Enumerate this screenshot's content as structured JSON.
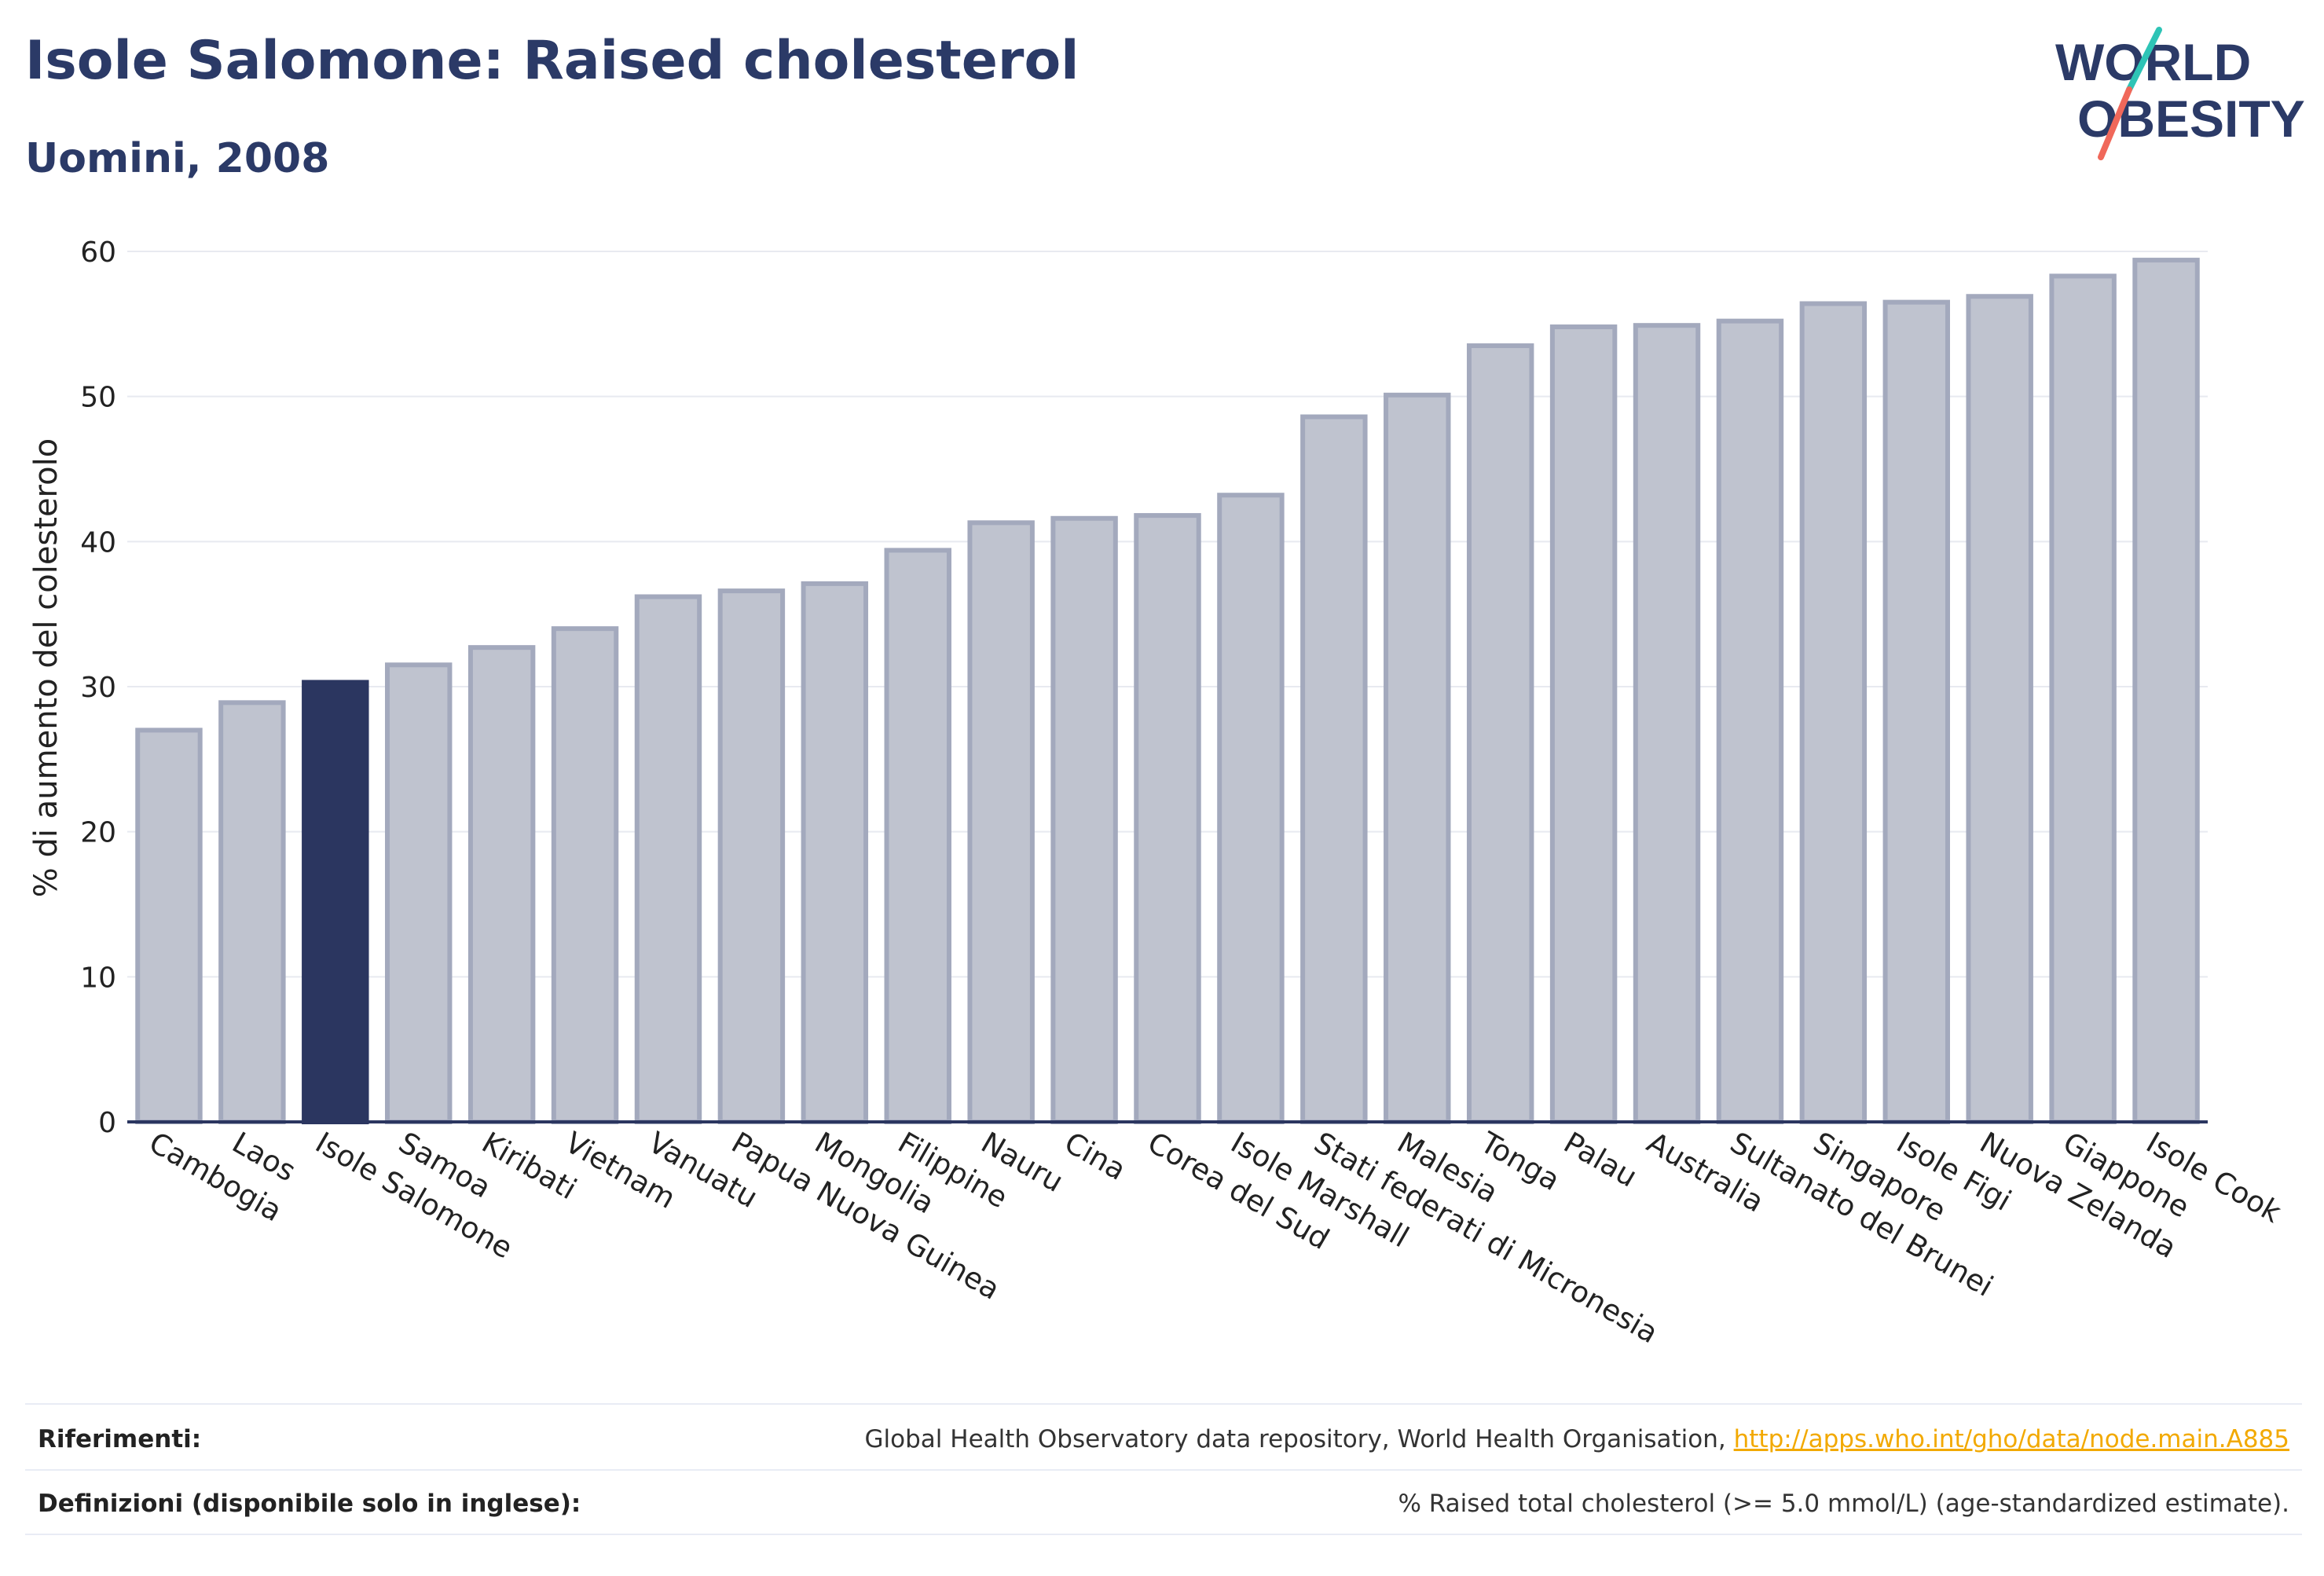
{
  "header": {
    "title": "Isole Salomone: Raised cholesterol",
    "subtitle": "Uomini, 2008"
  },
  "logo": {
    "line1": "WORLD",
    "line2": "OBESITY",
    "colors": {
      "text": "#2b3a67",
      "slash_top": "#2ec4b6",
      "slash_bottom": "#f0685a"
    }
  },
  "chart_data": {
    "type": "bar",
    "ylabel": "% di aumento del colesterolo",
    "ylim": [
      0,
      60
    ],
    "yticks": [
      0,
      10,
      20,
      30,
      40,
      50,
      60
    ],
    "grid": true,
    "highlight": "Isole Salomone",
    "colors": {
      "bar": "#bfc3cf",
      "bar_edge": "#a3a9bd",
      "highlight": "#2b3660",
      "axis": "#2b3660",
      "grid": "#e8eaf0"
    },
    "categories": [
      "Cambogia",
      "Laos",
      "Isole Salomone",
      "Samoa",
      "Kiribati",
      "Vietnam",
      "Vanuatu",
      "Papua Nuova Guinea",
      "Mongolia",
      "Filippine",
      "Nauru",
      "Cina",
      "Corea del Sud",
      "Isole Marshall",
      "Stati federati di Micronesia",
      "Malesia",
      "Tonga",
      "Palau",
      "Australia",
      "Sultanato del Brunei",
      "Singapore",
      "Isole Figi",
      "Nuova Zelanda",
      "Giappone",
      "Isole Cook"
    ],
    "values": [
      27.0,
      28.9,
      30.3,
      31.5,
      32.7,
      34.0,
      36.2,
      36.6,
      37.1,
      39.4,
      41.3,
      41.6,
      41.8,
      43.2,
      48.6,
      50.1,
      53.5,
      54.8,
      54.9,
      55.2,
      56.4,
      56.5,
      56.9,
      58.3,
      59.4
    ]
  },
  "footer": {
    "references_label": "Riferimenti:",
    "references_text": "Global Health Observatory data repository, World Health Organisation, ",
    "references_link": "http://apps.who.int/gho/data/node.main.A885",
    "definitions_label": "Definizioni (disponibile solo in inglese):",
    "definitions_text": "% Raised total cholesterol (>= 5.0 mmol/L) (age-standardized estimate)."
  }
}
